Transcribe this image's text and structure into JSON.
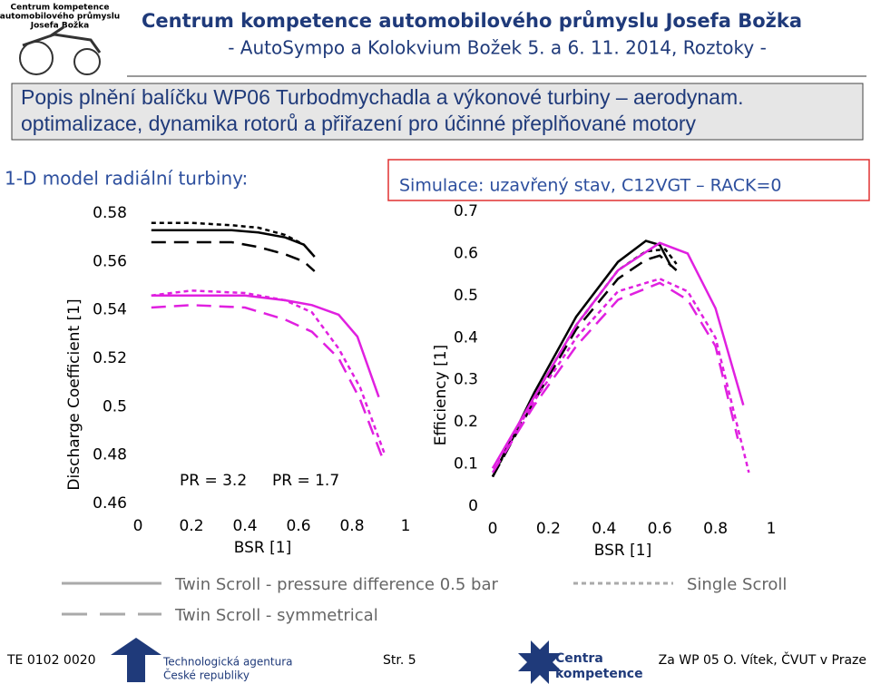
{
  "header": {
    "logo_lines": [
      "Centrum kompetence",
      "automobilového průmyslu",
      "Josefa Božka"
    ],
    "title": "Centrum kompetence automobilového průmyslu Josefa Božka",
    "subtitle": "- AutoSympo a Kolokvium Božek 5. a 6. 11. 2014, Roztoky -"
  },
  "description": [
    "Popis plnění balíčku WP06 Turbodmychadla a výkonové turbiny – aerodynam.",
    "optimalizace, dynamika rotorů a přiřazení pro účinné přeplňované motory"
  ],
  "section_title": "1-D model radiální turbiny:",
  "simulation_title": "Simulace: uzavřený stav, C12VGT – RACK=0",
  "legend": [
    {
      "label": "Twin Scroll - pressure difference 0.5 bar",
      "dash": "solid",
      "color": "#aaaaaa"
    },
    {
      "label": "Single Scroll",
      "dash": "short",
      "color": "#aaaaaa"
    },
    {
      "label": "Twin Scroll - symmetrical",
      "dash": "long",
      "color": "#aaaaaa"
    }
  ],
  "chart_data": [
    {
      "type": "line",
      "xlabel": "BSR [1]",
      "ylabel": "Discharge Coefficient [1]",
      "xlim": [
        0,
        1
      ],
      "xticks": [
        0,
        0.2,
        0.4,
        0.6,
        0.8,
        1
      ],
      "ylim": [
        0.46,
        0.58
      ],
      "yticks": [
        0.46,
        0.48,
        0.5,
        0.52,
        0.54,
        0.56,
        0.58
      ],
      "annotations": [
        {
          "text": "PR = 3.2",
          "color": "#000000"
        },
        {
          "text": "PR = 1.7",
          "color": "#e020e0"
        }
      ],
      "series": [
        {
          "color": "#000000",
          "dash": "solid",
          "x": [
            0.05,
            0.2,
            0.35,
            0.45,
            0.55,
            0.62,
            0.66
          ],
          "values": [
            0.573,
            0.573,
            0.573,
            0.572,
            0.57,
            0.567,
            0.562
          ]
        },
        {
          "color": "#000000",
          "dash": "short",
          "x": [
            0.05,
            0.2,
            0.35,
            0.45,
            0.55,
            0.62,
            0.66
          ],
          "values": [
            0.576,
            0.576,
            0.575,
            0.574,
            0.571,
            0.567,
            0.562
          ]
        },
        {
          "color": "#000000",
          "dash": "long",
          "x": [
            0.05,
            0.2,
            0.35,
            0.45,
            0.55,
            0.62,
            0.66
          ],
          "values": [
            0.568,
            0.568,
            0.568,
            0.566,
            0.563,
            0.56,
            0.556
          ]
        },
        {
          "color": "#e020e0",
          "dash": "solid",
          "x": [
            0.05,
            0.2,
            0.4,
            0.55,
            0.65,
            0.75,
            0.82,
            0.9
          ],
          "values": [
            0.546,
            0.546,
            0.546,
            0.544,
            0.542,
            0.538,
            0.529,
            0.504
          ]
        },
        {
          "color": "#e020e0",
          "dash": "short",
          "x": [
            0.05,
            0.2,
            0.4,
            0.55,
            0.65,
            0.75,
            0.83,
            0.92
          ],
          "values": [
            0.546,
            0.548,
            0.547,
            0.544,
            0.539,
            0.524,
            0.508,
            0.481
          ]
        },
        {
          "color": "#e020e0",
          "dash": "long",
          "x": [
            0.05,
            0.2,
            0.4,
            0.55,
            0.65,
            0.75,
            0.83,
            0.92
          ],
          "values": [
            0.541,
            0.542,
            0.541,
            0.536,
            0.531,
            0.52,
            0.503,
            0.477
          ]
        }
      ]
    },
    {
      "type": "line",
      "xlabel": "BSR [1]",
      "ylabel": "Efficiency [1]",
      "xlim": [
        0,
        1
      ],
      "xticks": [
        0,
        0.2,
        0.4,
        0.6,
        0.8,
        1
      ],
      "ylim": [
        0,
        0.7
      ],
      "yticks": [
        0,
        0.1,
        0.2,
        0.3,
        0.4,
        0.5,
        0.6,
        0.7
      ],
      "series": [
        {
          "color": "#000000",
          "dash": "solid",
          "x": [
            0,
            0.15,
            0.3,
            0.45,
            0.55,
            0.6,
            0.64
          ],
          "values": [
            0.07,
            0.27,
            0.45,
            0.58,
            0.63,
            0.62,
            0.57
          ]
        },
        {
          "color": "#000000",
          "dash": "short",
          "x": [
            0,
            0.15,
            0.3,
            0.45,
            0.55,
            0.62,
            0.66
          ],
          "values": [
            0.07,
            0.26,
            0.43,
            0.56,
            0.605,
            0.61,
            0.575
          ]
        },
        {
          "color": "#000000",
          "dash": "long",
          "x": [
            0,
            0.15,
            0.3,
            0.45,
            0.55,
            0.6,
            0.66
          ],
          "values": [
            0.07,
            0.25,
            0.42,
            0.54,
            0.585,
            0.595,
            0.56
          ]
        },
        {
          "color": "#e020e0",
          "dash": "solid",
          "x": [
            0,
            0.15,
            0.3,
            0.45,
            0.6,
            0.7,
            0.8,
            0.9
          ],
          "values": [
            0.09,
            0.26,
            0.43,
            0.56,
            0.625,
            0.6,
            0.47,
            0.24
          ]
        },
        {
          "color": "#e020e0",
          "dash": "short",
          "x": [
            0,
            0.15,
            0.3,
            0.45,
            0.6,
            0.7,
            0.8,
            0.92
          ],
          "values": [
            0.09,
            0.25,
            0.4,
            0.51,
            0.54,
            0.51,
            0.4,
            0.08
          ]
        },
        {
          "color": "#e020e0",
          "dash": "long",
          "x": [
            0,
            0.15,
            0.3,
            0.45,
            0.6,
            0.7,
            0.8,
            0.88
          ],
          "values": [
            0.08,
            0.24,
            0.38,
            0.49,
            0.53,
            0.49,
            0.38,
            0.16
          ]
        }
      ]
    }
  ],
  "footer": {
    "code": "TE 0102 0020",
    "agency": [
      "Technologická agentura",
      "České republiky"
    ],
    "page": "Str. 5",
    "centre": [
      "Centra",
      "kompetence"
    ],
    "author": "Za WP 05 O. Vítek, ČVUT v Praze"
  }
}
